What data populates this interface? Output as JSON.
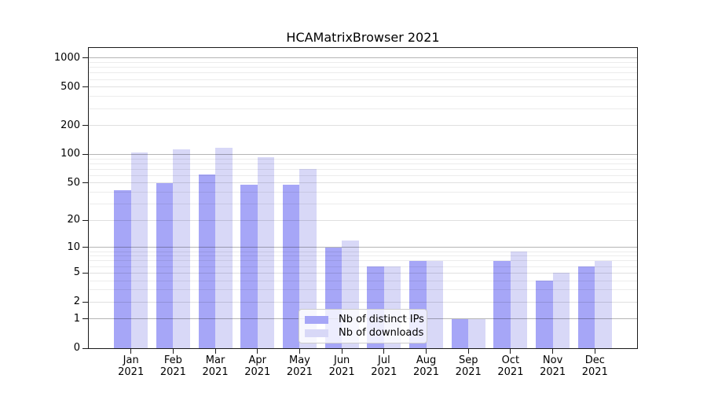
{
  "chart_data": {
    "type": "bar",
    "title": "HCAMatrixBrowser 2021",
    "categories": [
      "Jan",
      "Feb",
      "Mar",
      "Apr",
      "May",
      "Jun",
      "Jul",
      "Aug",
      "Sep",
      "Oct",
      "Nov",
      "Dec"
    ],
    "year_label": "2021",
    "series": [
      {
        "name": "Nb of distinct IPs",
        "color": "#a6a6f7",
        "values": [
          42,
          50,
          62,
          48,
          48,
          10,
          6,
          7,
          1,
          7,
          4,
          6
        ]
      },
      {
        "name": "Nb of downloads",
        "color": "#d8d8f7",
        "values": [
          105,
          112,
          118,
          93,
          71,
          12,
          6,
          7,
          1,
          9,
          5,
          7
        ]
      }
    ],
    "xlabel": "",
    "ylabel": "",
    "yscale": "log10(value+1)",
    "y_ticks": [
      0,
      1,
      2,
      5,
      10,
      20,
      50,
      100,
      200,
      500,
      1000
    ],
    "ylim": [
      0,
      1276
    ],
    "grid": "both major and minor, drawn above bars",
    "legend_position": "inside, lower center-left",
    "axis_color": "#1a1a1a",
    "background_color": "#ffffff"
  }
}
